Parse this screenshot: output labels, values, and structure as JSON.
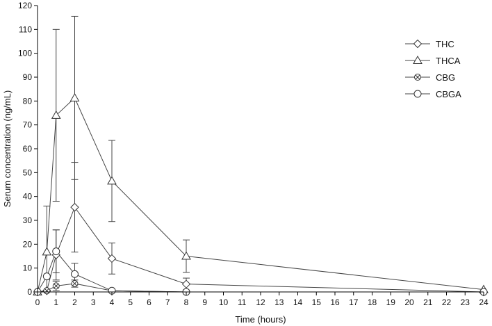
{
  "chart_data": {
    "type": "line",
    "xlabel": "Time  (hours)",
    "ylabel": "Serum concentration (ng/mL)",
    "xlim": [
      0,
      24
    ],
    "ylim": [
      0,
      120
    ],
    "x_ticks": [
      "0",
      "1",
      "2",
      "3",
      "4",
      "5",
      "6",
      "7",
      "8",
      "9",
      "10",
      "11",
      "12",
      "13",
      "14",
      "15",
      "16",
      "17",
      "18",
      "19",
      "20",
      "21",
      "22",
      "23",
      "24"
    ],
    "y_ticks": [
      "0",
      "10",
      "20",
      "30",
      "40",
      "50",
      "60",
      "70",
      "80",
      "90",
      "100",
      "110",
      "120"
    ],
    "grid": false,
    "legend_position": "top-right",
    "series": [
      {
        "name": "THC",
        "marker": "diamond",
        "x": [
          0,
          0.5,
          1,
          2,
          4,
          8,
          24
        ],
        "y": [
          0,
          0.5,
          15.5,
          35.5,
          14,
          3.3,
          0
        ],
        "err": [
          0,
          0,
          10.5,
          18.8,
          6.5,
          2.5,
          0
        ]
      },
      {
        "name": "THCA",
        "marker": "triangle",
        "x": [
          0,
          0.5,
          1,
          2,
          4,
          8,
          24
        ],
        "y": [
          0,
          16.8,
          74,
          81.3,
          46.5,
          15,
          1
        ],
        "err": [
          0,
          19.2,
          36,
          34.2,
          17,
          6.8,
          0
        ]
      },
      {
        "name": "CBG",
        "marker": "circle-x",
        "x": [
          0,
          0.5,
          1,
          2,
          4,
          8,
          24
        ],
        "y": [
          0,
          0.5,
          2.5,
          3.5,
          0.5,
          0,
          0
        ],
        "err": [
          0,
          0,
          2,
          1.5,
          0,
          0,
          0
        ]
      },
      {
        "name": "CBGA",
        "marker": "circle",
        "x": [
          0,
          0.5,
          1,
          2,
          4,
          8,
          24
        ],
        "y": [
          0,
          6.5,
          17,
          7.5,
          0.5,
          0,
          0
        ],
        "err": [
          0,
          0,
          9,
          4.5,
          0,
          0,
          0
        ]
      }
    ]
  }
}
